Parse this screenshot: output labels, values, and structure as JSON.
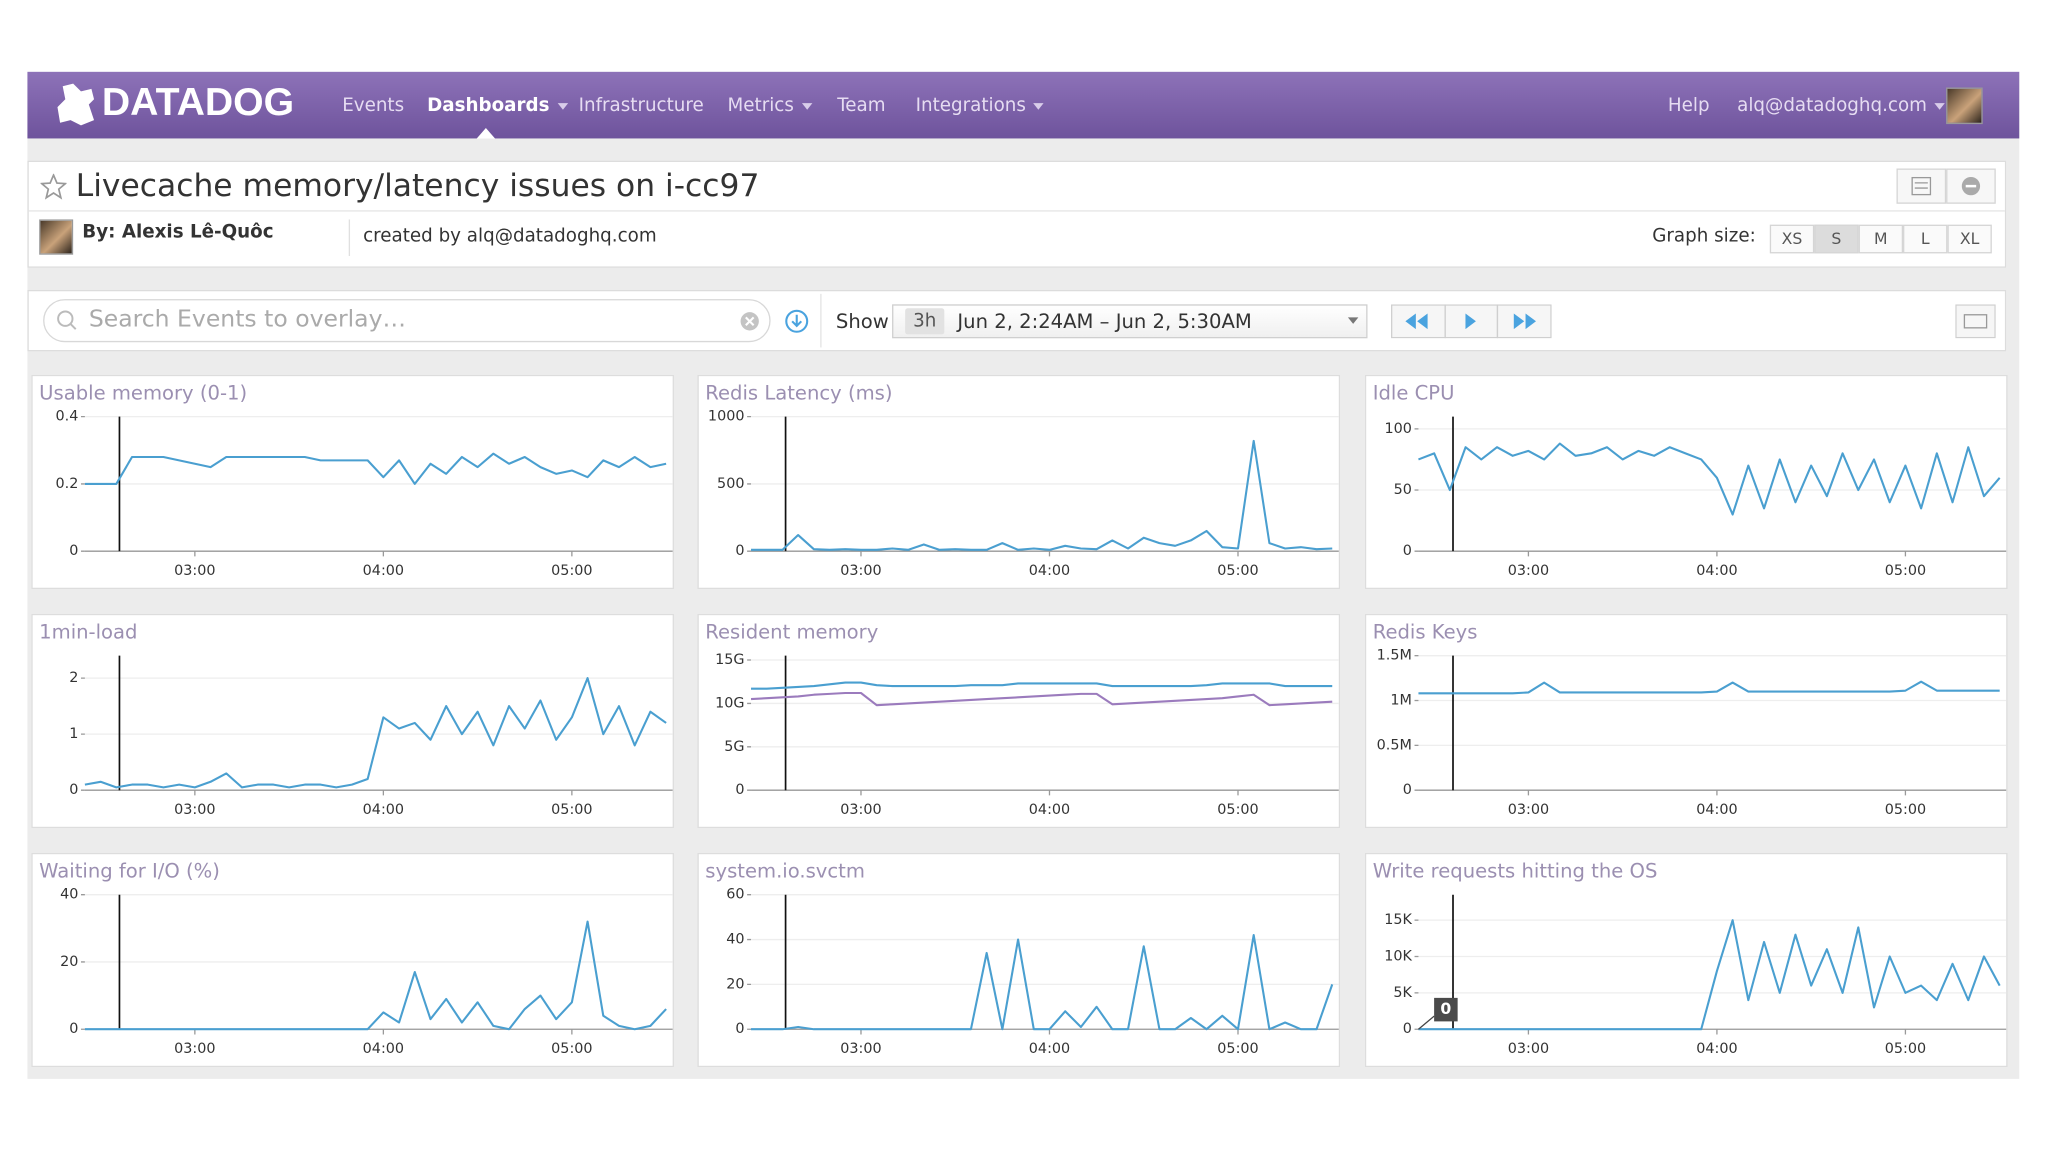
{
  "nav": {
    "logo": "DATADOG",
    "items": [
      "Events",
      "Dashboards",
      "Infrastructure",
      "Metrics",
      "Team",
      "Integrations"
    ],
    "help": "Help",
    "user": "alq@datadoghq.com"
  },
  "header": {
    "title": "Livecache memory/latency issues on i-cc97",
    "author": "By: Alexis Lê-Quôc",
    "created_by": "created by alq@datadoghq.com",
    "graph_size_label": "Graph size:",
    "graph_sizes": [
      "XS",
      "S",
      "M",
      "L",
      "XL"
    ]
  },
  "toolbar": {
    "search_placeholder": "Search Events to overlay…",
    "show": "Show",
    "range": "3h",
    "timeframe": "Jun 2, 2:24AM – Jun 2, 5:30AM"
  },
  "chart_data": [
    {
      "type": "line",
      "title": "Usable memory (0-1)",
      "grid": true,
      "event_x": 156,
      "x": [
        145,
        150,
        155,
        160,
        165,
        170,
        175,
        180,
        185,
        190,
        195,
        200,
        205,
        210,
        215,
        220,
        225,
        230,
        235,
        240,
        245,
        250,
        255,
        260,
        265,
        270,
        275,
        280,
        285,
        290,
        295,
        300,
        305,
        310,
        315,
        320,
        325,
        330
      ],
      "xlim": [
        145,
        330
      ],
      "xticks": [
        {
          "value": 180,
          "label": "03:00"
        },
        {
          "value": 240,
          "label": "04:00"
        },
        {
          "value": 300,
          "label": "05:00"
        }
      ],
      "ylim": [
        0,
        0.4
      ],
      "yticks": [
        0,
        0.2,
        0.4
      ],
      "series": [
        {
          "color": "#4a9fd0",
          "values": [
            0.2,
            0.2,
            0.2,
            0.28,
            0.28,
            0.28,
            0.27,
            0.26,
            0.25,
            0.28,
            0.28,
            0.28,
            0.28,
            0.28,
            0.28,
            0.27,
            0.27,
            0.27,
            0.27,
            0.22,
            0.27,
            0.2,
            0.26,
            0.23,
            0.28,
            0.25,
            0.29,
            0.26,
            0.28,
            0.25,
            0.23,
            0.24,
            0.22,
            0.27,
            0.25,
            0.28,
            0.25,
            0.26
          ]
        }
      ]
    },
    {
      "type": "line",
      "title": "Redis Latency (ms)",
      "grid": true,
      "event_x": 156,
      "x": [
        145,
        150,
        155,
        160,
        165,
        170,
        175,
        180,
        185,
        190,
        195,
        200,
        205,
        210,
        215,
        220,
        225,
        230,
        235,
        240,
        245,
        250,
        255,
        260,
        265,
        270,
        275,
        280,
        285,
        290,
        295,
        300,
        305,
        310,
        315,
        320,
        325,
        330
      ],
      "xlim": [
        145,
        330
      ],
      "xticks": [
        {
          "value": 180,
          "label": "03:00"
        },
        {
          "value": 240,
          "label": "04:00"
        },
        {
          "value": 300,
          "label": "05:00"
        }
      ],
      "ylim": [
        0,
        1000
      ],
      "yticks": [
        0,
        500,
        1000
      ],
      "series": [
        {
          "color": "#4a9fd0",
          "values": [
            10,
            10,
            10,
            120,
            15,
            10,
            15,
            10,
            10,
            20,
            10,
            50,
            10,
            15,
            10,
            10,
            60,
            10,
            20,
            10,
            40,
            20,
            15,
            80,
            20,
            100,
            60,
            40,
            80,
            150,
            30,
            20,
            820,
            60,
            20,
            30,
            15,
            20
          ]
        }
      ]
    },
    {
      "type": "line",
      "title": "Idle CPU",
      "grid": true,
      "event_x": 156,
      "x": [
        145,
        150,
        155,
        160,
        165,
        170,
        175,
        180,
        185,
        190,
        195,
        200,
        205,
        210,
        215,
        220,
        225,
        230,
        235,
        240,
        245,
        250,
        255,
        260,
        265,
        270,
        275,
        280,
        285,
        290,
        295,
        300,
        305,
        310,
        315,
        320,
        325,
        330
      ],
      "xlim": [
        145,
        330
      ],
      "xticks": [
        {
          "value": 180,
          "label": "03:00"
        },
        {
          "value": 240,
          "label": "04:00"
        },
        {
          "value": 300,
          "label": "05:00"
        }
      ],
      "ylim": [
        0,
        110
      ],
      "yticks": [
        0,
        50,
        100
      ],
      "series": [
        {
          "color": "#4a9fd0",
          "values": [
            75,
            80,
            50,
            85,
            75,
            85,
            78,
            82,
            75,
            88,
            78,
            80,
            85,
            75,
            82,
            78,
            85,
            80,
            75,
            60,
            30,
            70,
            35,
            75,
            40,
            70,
            45,
            80,
            50,
            75,
            40,
            70,
            35,
            80,
            40,
            85,
            45,
            60
          ]
        }
      ]
    },
    {
      "type": "line",
      "title": "1min-load",
      "grid": true,
      "event_x": 156,
      "x": [
        145,
        150,
        155,
        160,
        165,
        170,
        175,
        180,
        185,
        190,
        195,
        200,
        205,
        210,
        215,
        220,
        225,
        230,
        235,
        240,
        245,
        250,
        255,
        260,
        265,
        270,
        275,
        280,
        285,
        290,
        295,
        300,
        305,
        310,
        315,
        320,
        325,
        330
      ],
      "xlim": [
        145,
        330
      ],
      "xticks": [
        {
          "value": 180,
          "label": "03:00"
        },
        {
          "value": 240,
          "label": "04:00"
        },
        {
          "value": 300,
          "label": "05:00"
        }
      ],
      "ylim": [
        0,
        2.4
      ],
      "yticks": [
        0,
        1,
        2
      ],
      "series": [
        {
          "color": "#4a9fd0",
          "values": [
            0.1,
            0.15,
            0.05,
            0.1,
            0.1,
            0.05,
            0.1,
            0.05,
            0.15,
            0.3,
            0.05,
            0.1,
            0.1,
            0.05,
            0.1,
            0.1,
            0.05,
            0.1,
            0.2,
            1.3,
            1.1,
            1.2,
            0.9,
            1.5,
            1.0,
            1.4,
            0.8,
            1.5,
            1.1,
            1.6,
            0.9,
            1.3,
            2.0,
            1.0,
            1.5,
            0.8,
            1.4,
            1.2
          ]
        }
      ]
    },
    {
      "type": "line",
      "title": "Resident memory",
      "grid": true,
      "event_x": 156,
      "x": [
        145,
        150,
        155,
        160,
        165,
        170,
        175,
        180,
        185,
        190,
        195,
        200,
        205,
        210,
        215,
        220,
        225,
        230,
        235,
        240,
        245,
        250,
        255,
        260,
        265,
        270,
        275,
        280,
        285,
        290,
        295,
        300,
        305,
        310,
        315,
        320,
        325,
        330
      ],
      "xlim": [
        145,
        330
      ],
      "xticks": [
        {
          "value": 180,
          "label": "03:00"
        },
        {
          "value": 240,
          "label": "04:00"
        },
        {
          "value": 300,
          "label": "05:00"
        }
      ],
      "ylim": [
        0,
        15500000000.0
      ],
      "yticks": [
        0,
        {
          "value": 5000000000.0,
          "label": "5G"
        },
        {
          "value": 10000000000.0,
          "label": "10G"
        },
        {
          "value": 15000000000.0,
          "label": "15G"
        }
      ],
      "series": [
        {
          "color": "#4a9fd0",
          "values": [
            11700000000.0,
            11700000000.0,
            11800000000.0,
            11900000000.0,
            12000000000.0,
            12200000000.0,
            12400000000.0,
            12400000000.0,
            12100000000.0,
            12000000000.0,
            12000000000.0,
            12000000000.0,
            12000000000.0,
            12000000000.0,
            12100000000.0,
            12100000000.0,
            12100000000.0,
            12300000000.0,
            12300000000.0,
            12300000000.0,
            12300000000.0,
            12300000000.0,
            12300000000.0,
            12000000000.0,
            12000000000.0,
            12000000000.0,
            12000000000.0,
            12000000000.0,
            12000000000.0,
            12100000000.0,
            12300000000.0,
            12300000000.0,
            12300000000.0,
            12300000000.0,
            12000000000.0,
            12000000000.0,
            12000000000.0,
            12000000000.0
          ]
        },
        {
          "color": "#9b7bbd",
          "values": [
            10500000000.0,
            10600000000.0,
            10700000000.0,
            10800000000.0,
            11000000000.0,
            11100000000.0,
            11200000000.0,
            11200000000.0,
            9800000000.0,
            9900000000.0,
            10000000000.0,
            10100000000.0,
            10200000000.0,
            10300000000.0,
            10400000000.0,
            10500000000.0,
            10600000000.0,
            10700000000.0,
            10800000000.0,
            10900000000.0,
            11000000000.0,
            11100000000.0,
            11100000000.0,
            9900000000.0,
            10000000000.0,
            10100000000.0,
            10200000000.0,
            10300000000.0,
            10400000000.0,
            10500000000.0,
            10600000000.0,
            10800000000.0,
            11000000000.0,
            9800000000.0,
            9900000000.0,
            10000000000.0,
            10100000000.0,
            10200000000.0
          ]
        }
      ]
    },
    {
      "type": "line",
      "title": "Redis Keys",
      "grid": true,
      "event_x": 156,
      "x": [
        145,
        150,
        155,
        160,
        165,
        170,
        175,
        180,
        185,
        190,
        195,
        200,
        205,
        210,
        215,
        220,
        225,
        230,
        235,
        240,
        245,
        250,
        255,
        260,
        265,
        270,
        275,
        280,
        285,
        290,
        295,
        300,
        305,
        310,
        315,
        320,
        325,
        330
      ],
      "xlim": [
        145,
        330
      ],
      "xticks": [
        {
          "value": 180,
          "label": "03:00"
        },
        {
          "value": 240,
          "label": "04:00"
        },
        {
          "value": 300,
          "label": "05:00"
        }
      ],
      "ylim": [
        0,
        1500000
      ],
      "yticks": [
        0,
        {
          "value": 500000,
          "label": "0.5M"
        },
        {
          "value": 1000000,
          "label": "1M"
        },
        {
          "value": 1500000,
          "label": "1.5M"
        }
      ],
      "series": [
        {
          "color": "#4a9fd0",
          "values": [
            1080000,
            1080000,
            1080000,
            1080000,
            1080000,
            1080000,
            1080000,
            1090000,
            1200000,
            1090000,
            1090000,
            1090000,
            1090000,
            1090000,
            1090000,
            1090000,
            1090000,
            1090000,
            1090000,
            1100000,
            1200000,
            1100000,
            1100000,
            1100000,
            1100000,
            1100000,
            1100000,
            1100000,
            1100000,
            1100000,
            1100000,
            1110000,
            1210000,
            1110000,
            1110000,
            1110000,
            1110000,
            1110000
          ]
        }
      ]
    },
    {
      "type": "line",
      "title": "Waiting for I/O (%)",
      "grid": true,
      "event_x": 156,
      "x": [
        145,
        150,
        155,
        160,
        165,
        170,
        175,
        180,
        185,
        190,
        195,
        200,
        205,
        210,
        215,
        220,
        225,
        230,
        235,
        240,
        245,
        250,
        255,
        260,
        265,
        270,
        275,
        280,
        285,
        290,
        295,
        300,
        305,
        310,
        315,
        320,
        325,
        330
      ],
      "xlim": [
        145,
        330
      ],
      "xticks": [
        {
          "value": 180,
          "label": "03:00"
        },
        {
          "value": 240,
          "label": "04:00"
        },
        {
          "value": 300,
          "label": "05:00"
        }
      ],
      "ylim": [
        0,
        40
      ],
      "yticks": [
        0,
        20,
        40
      ],
      "series": [
        {
          "color": "#4a9fd0",
          "values": [
            0,
            0,
            0,
            0,
            0,
            0,
            0,
            0,
            0,
            0,
            0,
            0,
            0,
            0,
            0,
            0,
            0,
            0,
            0,
            5,
            2,
            17,
            3,
            9,
            2,
            8,
            1,
            0,
            6,
            10,
            3,
            8,
            32,
            4,
            1,
            0,
            1,
            6
          ]
        }
      ]
    },
    {
      "type": "line",
      "title": "system.io.svctm",
      "grid": true,
      "event_x": 156,
      "x": [
        145,
        150,
        155,
        160,
        165,
        170,
        175,
        180,
        185,
        190,
        195,
        200,
        205,
        210,
        215,
        220,
        225,
        230,
        235,
        240,
        245,
        250,
        255,
        260,
        265,
        270,
        275,
        280,
        285,
        290,
        295,
        300,
        305,
        310,
        315,
        320,
        325,
        330
      ],
      "xlim": [
        145,
        330
      ],
      "xticks": [
        {
          "value": 180,
          "label": "03:00"
        },
        {
          "value": 240,
          "label": "04:00"
        },
        {
          "value": 300,
          "label": "05:00"
        }
      ],
      "ylim": [
        0,
        60
      ],
      "yticks": [
        0,
        20,
        40,
        60
      ],
      "series": [
        {
          "color": "#4a9fd0",
          "values": [
            0,
            0,
            0,
            1,
            0,
            0,
            0,
            0,
            0,
            0,
            0,
            0,
            0,
            0,
            0,
            34,
            0,
            40,
            0,
            0,
            8,
            1,
            10,
            0,
            0,
            37,
            0,
            0,
            5,
            0,
            6,
            0,
            42,
            0,
            3,
            0,
            0,
            20
          ]
        }
      ]
    },
    {
      "type": "line",
      "title": "Write requests hitting the OS",
      "grid": true,
      "event_x": 156,
      "annotation": "0",
      "x": [
        145,
        150,
        155,
        160,
        165,
        170,
        175,
        180,
        185,
        190,
        195,
        200,
        205,
        210,
        215,
        220,
        225,
        230,
        235,
        240,
        245,
        250,
        255,
        260,
        265,
        270,
        275,
        280,
        285,
        290,
        295,
        300,
        305,
        310,
        315,
        320,
        325,
        330
      ],
      "xlim": [
        145,
        330
      ],
      "xticks": [
        {
          "value": 180,
          "label": "03:00"
        },
        {
          "value": 240,
          "label": "04:00"
        },
        {
          "value": 300,
          "label": "05:00"
        }
      ],
      "ylim": [
        0,
        18500
      ],
      "yticks": [
        0,
        {
          "value": 5000,
          "label": "5K"
        },
        {
          "value": 10000,
          "label": "10K"
        },
        {
          "value": 15000,
          "label": "15K"
        }
      ],
      "series": [
        {
          "color": "#4a9fd0",
          "values": [
            0,
            0,
            0,
            0,
            0,
            0,
            0,
            0,
            0,
            0,
            0,
            0,
            0,
            0,
            0,
            0,
            0,
            0,
            0,
            8000,
            15000,
            4000,
            12000,
            5000,
            13000,
            6000,
            11000,
            5000,
            14000,
            3000,
            10000,
            5000,
            6000,
            4000,
            9000,
            4000,
            10000,
            6000
          ]
        }
      ]
    }
  ]
}
